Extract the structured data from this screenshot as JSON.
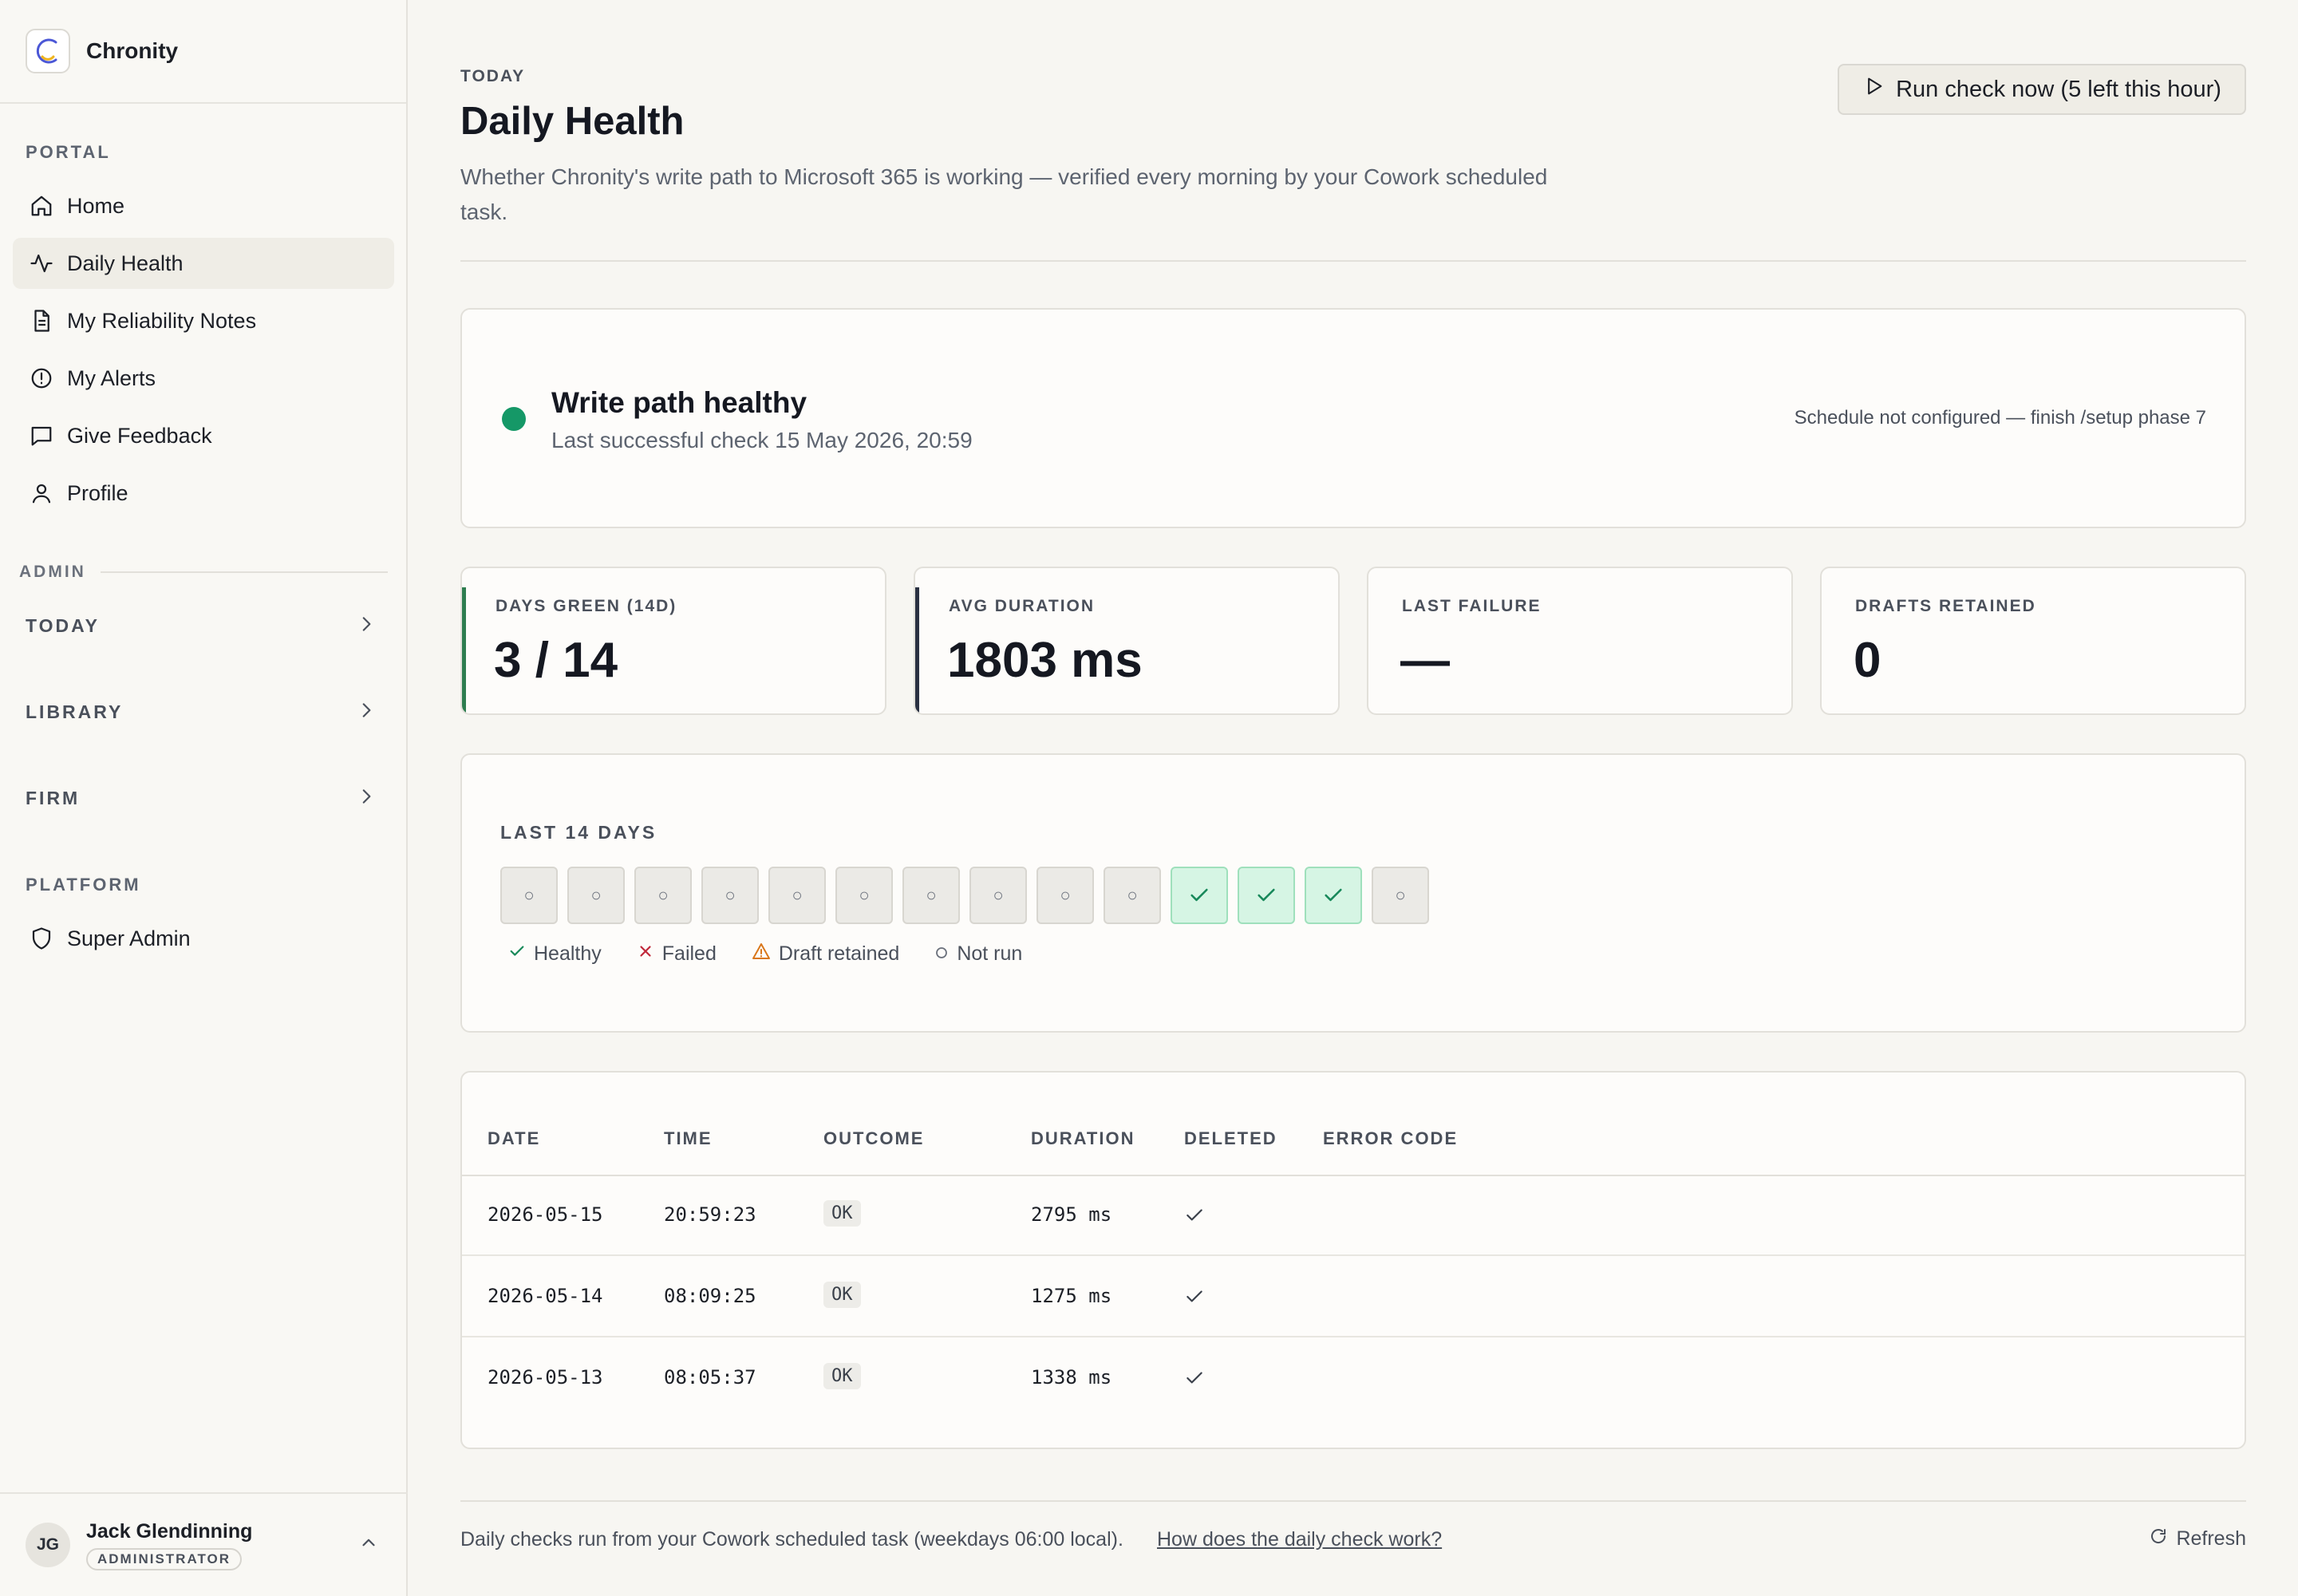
{
  "brand": {
    "name": "Chronity"
  },
  "sidebar": {
    "portal_label": "PORTAL",
    "items": [
      {
        "label": "Home",
        "icon": "home-icon"
      },
      {
        "label": "Daily Health",
        "icon": "activity-icon",
        "active": true
      },
      {
        "label": "My Reliability Notes",
        "icon": "document-icon"
      },
      {
        "label": "My Alerts",
        "icon": "alert-circle-icon"
      },
      {
        "label": "Give Feedback",
        "icon": "message-icon"
      },
      {
        "label": "Profile",
        "icon": "user-icon"
      }
    ],
    "admin_label": "ADMIN",
    "groups": [
      {
        "label": "TODAY"
      },
      {
        "label": "LIBRARY"
      },
      {
        "label": "FIRM"
      }
    ],
    "platform_label": "PLATFORM",
    "platform_items": [
      {
        "label": "Super Admin",
        "icon": "shield-icon"
      }
    ]
  },
  "user": {
    "initials": "JG",
    "name": "Jack Glendinning",
    "role": "ADMINISTRATOR"
  },
  "header": {
    "eyebrow": "TODAY",
    "title": "Daily Health",
    "description": "Whether Chronity's write path to Microsoft 365 is working — verified every morning by your Cowork scheduled task.",
    "run_button": "Run check now (5 left this hour)"
  },
  "status": {
    "title": "Write path healthy",
    "subtitle": "Last successful check 15 May 2026, 20:59",
    "schedule_note": "Schedule not configured — finish /setup phase 7",
    "color": "#159867"
  },
  "stats": [
    {
      "caption": "DAYS GREEN (14D)",
      "value": "3 / 14",
      "accent": "#2e7d4f"
    },
    {
      "caption": "AVG DURATION",
      "value": "1803 ms",
      "accent": "#2a3142"
    },
    {
      "caption": "LAST FAILURE",
      "value": "—",
      "accent": ""
    },
    {
      "caption": "DRAFTS RETAINED",
      "value": "0",
      "accent": ""
    }
  ],
  "days": {
    "caption": "LAST 14 DAYS",
    "cells": [
      "not_run",
      "not_run",
      "not_run",
      "not_run",
      "not_run",
      "not_run",
      "not_run",
      "not_run",
      "not_run",
      "not_run",
      "healthy",
      "healthy",
      "healthy",
      "not_run"
    ],
    "not_run_glyph": "○",
    "legend": [
      {
        "label": "Healthy",
        "icon": "check-icon"
      },
      {
        "label": "Failed",
        "icon": "x-icon"
      },
      {
        "label": "Draft retained",
        "icon": "warning-icon"
      },
      {
        "label": "Not run",
        "icon": "circle-icon"
      }
    ]
  },
  "table": {
    "headers": [
      "DATE",
      "TIME",
      "OUTCOME",
      "DURATION",
      "DELETED",
      "ERROR CODE"
    ],
    "rows": [
      {
        "date": "2026-05-15",
        "time": "20:59:23",
        "outcome": "OK",
        "duration": "2795 ms",
        "deleted": true,
        "error": ""
      },
      {
        "date": "2026-05-14",
        "time": "08:09:25",
        "outcome": "OK",
        "duration": "1275 ms",
        "deleted": true,
        "error": ""
      },
      {
        "date": "2026-05-13",
        "time": "08:05:37",
        "outcome": "OK",
        "duration": "1338 ms",
        "deleted": true,
        "error": ""
      }
    ]
  },
  "footer": {
    "text": "Daily checks run from your Cowork scheduled task (weekdays 06:00 local).",
    "link": "How does the daily check work?",
    "refresh": "Refresh"
  }
}
